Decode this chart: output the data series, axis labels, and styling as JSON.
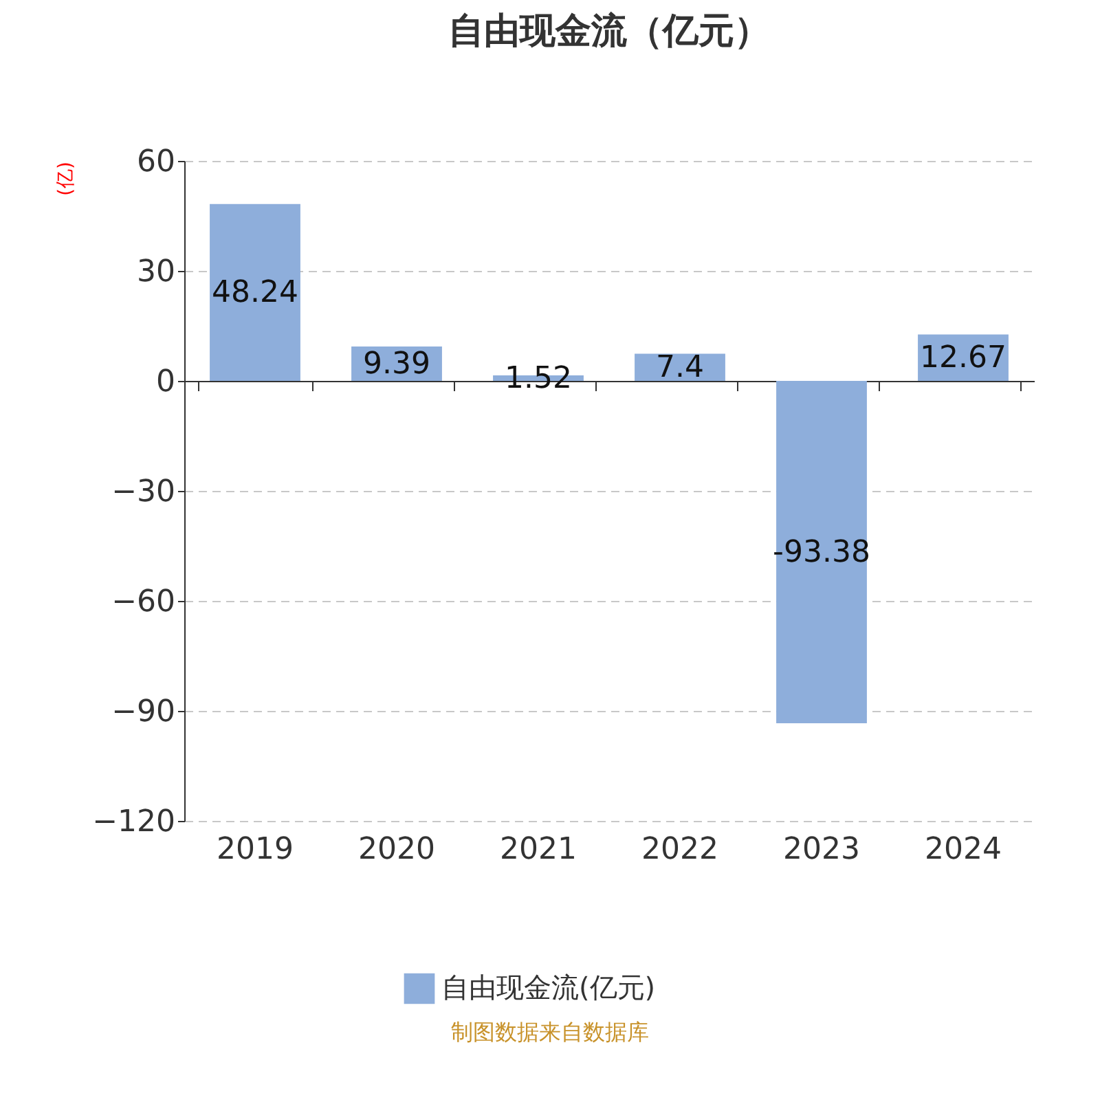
{
  "chart_data": {
    "type": "bar",
    "title": "自由现金流（亿元）",
    "ylabel": "(亿)",
    "categories": [
      "2019",
      "2020",
      "2021",
      "2022",
      "2023",
      "2024"
    ],
    "series": [
      {
        "name": "自由现金流(亿元)",
        "color": "#8eaedb",
        "values": [
          48.24,
          9.39,
          1.52,
          7.4,
          -93.38,
          12.67
        ]
      }
    ],
    "ylim": [
      -120,
      60
    ],
    "yticks": [
      -120,
      -90,
      -60,
      -30,
      0,
      30,
      60
    ],
    "grid": "y",
    "legend": "bottom",
    "data_labels": true,
    "annotations": [
      "制图数据来自数据库"
    ]
  }
}
